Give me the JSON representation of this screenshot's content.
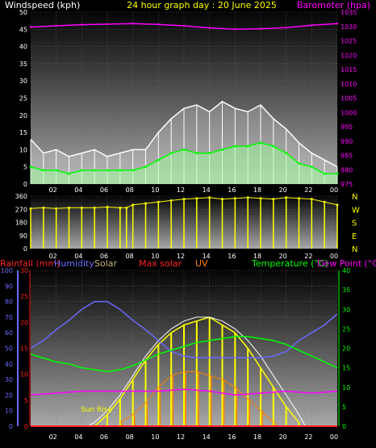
{
  "colors": {
    "background": "#000000",
    "wind_title": "#ffffff",
    "graph_title": "#ffff00",
    "barometer": "#ff00ff",
    "direction": "#ffff00",
    "rainfall": "#ff2020",
    "humidity": "#6a6aff",
    "solar": "#c8b478",
    "max_solar": "#ff2020",
    "uv": "#ff8000",
    "temperature": "#00ff00",
    "dew_point": "#ff00ff"
  },
  "header": {
    "wind_label": "Windspeed (kph)",
    "graph_title": "24 hour graph day : 20 June 2025",
    "barometer_label": "Barometer (hpa)"
  },
  "bottom_header": {
    "rainfall": "Rainfall (mm)",
    "humidity": "Humidity",
    "solar": "Solar",
    "max_solar": "Max solar",
    "uv": "UV",
    "temperature": "Temperature (°C)",
    "dew_point": "Dew Point (°C)"
  },
  "annotations": {
    "sun_rise": "Sun Rise"
  },
  "hour_labels": [
    "02",
    "04",
    "06",
    "08",
    "10",
    "12",
    "14",
    "16",
    "18",
    "20",
    "22",
    "00"
  ],
  "chart_data": [
    {
      "type": "line",
      "panel": "wind_barometer",
      "title": "24 hour graph day : 20 June 2025",
      "x_ticks": [
        "02",
        "04",
        "06",
        "08",
        "10",
        "12",
        "14",
        "16",
        "18",
        "20",
        "22",
        "00"
      ],
      "y_left": {
        "label": "Windspeed (kph)",
        "range": [
          0,
          50
        ],
        "ticks": [
          0,
          5,
          10,
          15,
          20,
          25,
          30,
          35,
          40,
          45,
          50
        ]
      },
      "y_right": {
        "label": "Barometer (hpa)",
        "range": [
          975,
          1035
        ],
        "ticks": [
          975,
          980,
          985,
          990,
          995,
          1000,
          1005,
          1010,
          1015,
          1020,
          1025,
          1030,
          1035
        ]
      },
      "grid": true,
      "series": [
        {
          "name": "Barometer",
          "axis": "right",
          "color": "#ff00ff",
          "hours": [
            0,
            2,
            4,
            6,
            8,
            10,
            12,
            14,
            16,
            18,
            20,
            22,
            24
          ],
          "values": [
            1029.8,
            1030.2,
            1030.6,
            1030.8,
            1031.0,
            1030.7,
            1030.2,
            1029.5,
            1029.0,
            1029.2,
            1029.6,
            1030.4,
            1031.0
          ]
        },
        {
          "name": "Wind gust",
          "axis": "left",
          "color": "#ffffff",
          "hours": [
            0,
            1,
            2,
            3,
            4,
            5,
            6,
            7,
            8,
            9,
            10,
            11,
            12,
            13,
            14,
            15,
            16,
            17,
            18,
            19,
            20,
            21,
            22,
            23,
            24
          ],
          "values": [
            13,
            9,
            10,
            8,
            9,
            10,
            8,
            9,
            10,
            10,
            15,
            19,
            22,
            23,
            21,
            24,
            22,
            21,
            23,
            19,
            16,
            12,
            9,
            7,
            5
          ]
        },
        {
          "name": "Wind average",
          "axis": "left",
          "color": "#00ff00",
          "hours": [
            0,
            1,
            2,
            3,
            4,
            5,
            6,
            7,
            8,
            9,
            10,
            11,
            12,
            13,
            14,
            15,
            16,
            17,
            18,
            19,
            20,
            21,
            22,
            23,
            24
          ],
          "values": [
            5,
            4,
            4,
            3,
            4,
            4,
            4,
            4,
            4,
            5,
            7,
            9,
            10,
            9,
            9,
            10,
            11,
            11,
            12,
            11,
            9,
            6,
            5,
            3,
            3
          ]
        }
      ]
    },
    {
      "type": "scatter",
      "panel": "wind_direction",
      "x_ticks": [
        "02",
        "04",
        "06",
        "08",
        "10",
        "12",
        "14",
        "16",
        "18",
        "20",
        "22",
        "00"
      ],
      "y_left": {
        "range": [
          0,
          360
        ],
        "ticks": [
          0,
          90,
          180,
          270,
          360
        ]
      },
      "y_right_labels": [
        "N",
        "W",
        "S",
        "E",
        "N"
      ],
      "grid": true,
      "series": [
        {
          "name": "Wind direction",
          "color": "#ffff00",
          "hours": [
            0,
            1,
            2,
            3,
            4,
            5,
            6,
            7,
            7.5,
            8,
            9,
            10,
            11,
            12,
            13,
            14,
            15,
            16,
            17,
            18,
            19,
            20,
            21,
            22,
            23,
            24
          ],
          "values": [
            275,
            280,
            275,
            280,
            280,
            280,
            285,
            280,
            280,
            300,
            310,
            320,
            330,
            340,
            345,
            350,
            340,
            345,
            350,
            345,
            340,
            350,
            345,
            340,
            320,
            300
          ]
        }
      ]
    },
    {
      "type": "line",
      "panel": "rain_humidity_solar_temperature",
      "x_ticks": [
        "02",
        "04",
        "06",
        "08",
        "10",
        "12",
        "14",
        "16",
        "18",
        "20",
        "22",
        "00"
      ],
      "y_left_outer": {
        "label": "Humidity",
        "range": [
          0,
          100
        ],
        "ticks": [
          0,
          10,
          20,
          30,
          40,
          50,
          60,
          70,
          80,
          90,
          100
        ]
      },
      "y_left_inner": {
        "label": "Rainfall (mm)",
        "range": [
          0,
          30
        ],
        "ticks": [
          0,
          5,
          10,
          15,
          20,
          25,
          30
        ]
      },
      "y_right": {
        "label": "Temperature (°C)",
        "range": [
          0,
          40
        ],
        "ticks": [
          0,
          5,
          10,
          15,
          20,
          25,
          30,
          35,
          40
        ]
      },
      "grid": true,
      "series": [
        {
          "name": "Humidity",
          "color": "#6a6aff",
          "hours": [
            0,
            1,
            2,
            3,
            4,
            5,
            6,
            7,
            8,
            9,
            10,
            11,
            12,
            13,
            14,
            15,
            16,
            17,
            18,
            19,
            20,
            21,
            22,
            23,
            24
          ],
          "values": [
            50,
            55,
            62,
            68,
            75,
            80,
            80,
            75,
            68,
            62,
            55,
            48,
            45,
            44,
            44,
            44,
            44,
            44,
            44,
            45,
            48,
            55,
            60,
            65,
            72
          ]
        },
        {
          "name": "Temperature",
          "color": "#00ff00",
          "hours": [
            0,
            1,
            2,
            3,
            4,
            5,
            6,
            7,
            8,
            9,
            10,
            11,
            12,
            13,
            14,
            15,
            16,
            17,
            18,
            19,
            20,
            21,
            22,
            23,
            24
          ],
          "values": [
            18.5,
            17.5,
            16.5,
            16,
            15,
            14.5,
            14,
            14.5,
            15.5,
            17,
            18.5,
            19.5,
            20.5,
            21.5,
            22,
            22.5,
            23,
            23,
            22.5,
            22,
            21,
            19.5,
            18,
            16.5,
            15
          ]
        },
        {
          "name": "Dew Point",
          "color": "#ff00ff",
          "hours": [
            0,
            2,
            4,
            6,
            8,
            10,
            12,
            14,
            16,
            18,
            20,
            22,
            24
          ],
          "values": [
            8,
            8.5,
            9,
            9,
            9,
            9,
            9.5,
            9,
            8,
            8.5,
            9,
            8.5,
            9
          ]
        },
        {
          "name": "Max solar",
          "color": "#ffffff",
          "hours": [
            4.5,
            5,
            6,
            7,
            8,
            9,
            10,
            11,
            12,
            13,
            14,
            15,
            16,
            17,
            18,
            19,
            20,
            21,
            21.5
          ],
          "values": [
            0,
            1,
            4,
            8,
            13,
            18,
            22,
            25,
            27,
            28,
            28,
            27,
            25,
            22,
            18,
            13,
            8,
            3,
            0
          ]
        },
        {
          "name": "Solar",
          "color": "#ffff00",
          "hours": [
            5,
            6,
            7,
            8,
            9,
            10,
            11,
            12,
            13,
            14,
            15,
            16,
            17,
            18,
            19,
            20,
            21
          ],
          "values": [
            0,
            3,
            7,
            12,
            17,
            21,
            24,
            26,
            27,
            28,
            26,
            24,
            20,
            15,
            10,
            5,
            1
          ]
        },
        {
          "name": "UV",
          "color": "#ff8000",
          "hours": [
            7,
            8,
            9,
            10,
            11,
            12,
            13,
            14,
            15,
            16,
            17,
            18,
            19
          ],
          "values": [
            1,
            3,
            6,
            10,
            13,
            14,
            14,
            13,
            12,
            10,
            7,
            4,
            1
          ]
        },
        {
          "name": "Rainfall",
          "color": "#ff2020",
          "hours": [
            0,
            24
          ],
          "values": [
            0,
            0
          ]
        }
      ]
    }
  ]
}
